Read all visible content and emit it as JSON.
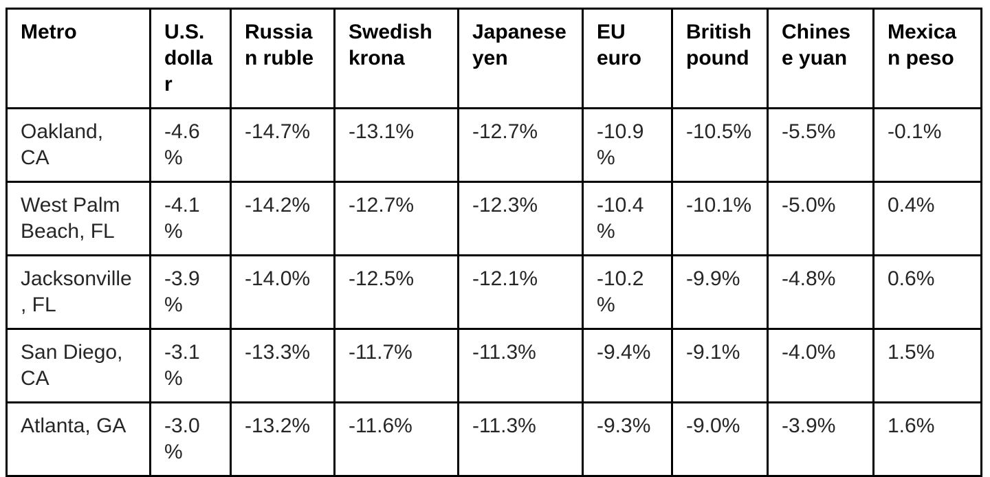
{
  "chart_data": {
    "type": "table",
    "columns": [
      "Metro",
      "U.S. dollar",
      "Russian ruble",
      "Swedish krona",
      "Japanese yen",
      "EU euro",
      "British pound",
      "Chinese yuan",
      "Mexican peso"
    ],
    "rows": [
      {
        "metro": "Oakland, CA",
        "values": [
          "-4.6%",
          "-14.7%",
          "-13.1%",
          "-12.7%",
          "-10.9%",
          "-10.5%",
          "-5.5%",
          "-0.1%"
        ]
      },
      {
        "metro": "West Palm Beach, FL",
        "values": [
          "-4.1%",
          "-14.2%",
          "-12.7%",
          "-12.3%",
          "-10.4%",
          "-10.1%",
          "-5.0%",
          "0.4%"
        ]
      },
      {
        "metro": "Jacksonville, FL",
        "values": [
          "-3.9%",
          "-14.0%",
          "-12.5%",
          "-12.1%",
          "-10.2%",
          "-9.9%",
          "-4.8%",
          "0.6%"
        ]
      },
      {
        "metro": "San Diego, CA",
        "values": [
          "-3.1%",
          "-13.3%",
          "-11.7%",
          "-11.3%",
          "-9.4%",
          "-9.1%",
          "-4.0%",
          "1.5%"
        ]
      },
      {
        "metro": "Atlanta, GA",
        "values": [
          "-3.0%",
          "-13.2%",
          "-11.6%",
          "-11.3%",
          "-9.3%",
          "-9.0%",
          "-3.9%",
          "1.6%"
        ]
      }
    ],
    "layout": {
      "grid": "all-borders",
      "header_position": "top-row"
    },
    "colors": {
      "border": "#000000",
      "header_text": "#000000",
      "body_text": "#262626",
      "background": "#ffffff"
    }
  }
}
